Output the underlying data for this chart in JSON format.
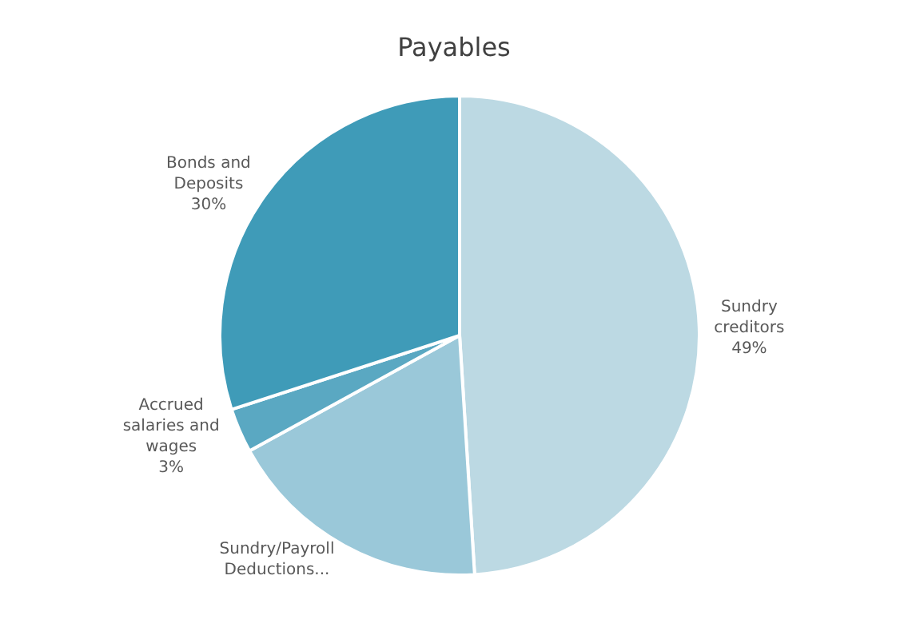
{
  "chart_data": {
    "type": "pie",
    "title": "Payables",
    "categories": [
      "Sundry creditors",
      "Sundry/Payroll Deductions...",
      "Accrued salaries and wages",
      "Bonds and Deposits"
    ],
    "values": [
      49,
      18,
      3,
      30
    ],
    "value_labels": [
      "49%",
      null,
      "3%",
      "30%"
    ],
    "colors": [
      "#bcd9e3",
      "#9ac8d9",
      "#5aa8c2",
      "#3f9bb8"
    ],
    "legend": false
  }
}
